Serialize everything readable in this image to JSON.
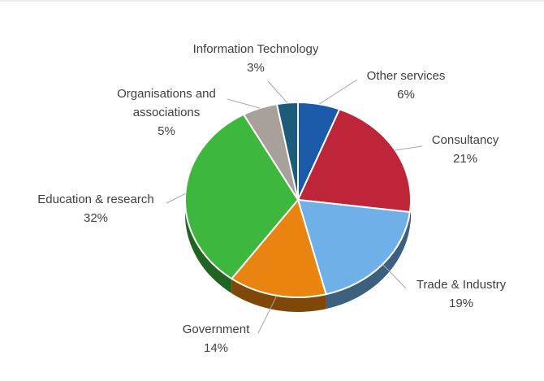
{
  "chart_data": {
    "type": "pie",
    "categories": [
      "Other services",
      "Consultancy",
      "Trade & Industry",
      "Government",
      "Education & research",
      "Organisations and associations",
      "Information Technology"
    ],
    "values": [
      6,
      21,
      19,
      14,
      32,
      5,
      3
    ],
    "value_labels": [
      "6%",
      "21%",
      "19%",
      "14%",
      "32%",
      "5%",
      "3%"
    ],
    "colors": [
      "#1a5aa8",
      "#be2538",
      "#6fb0e8",
      "#e8840f",
      "#3db73d",
      "#a8a09a",
      "#1c5c7a"
    ]
  }
}
